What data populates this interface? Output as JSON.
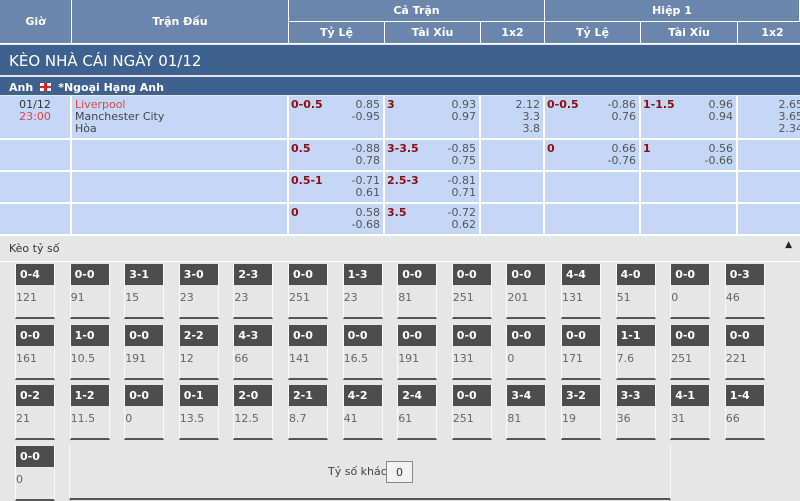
{
  "header": {
    "gio": "Giờ",
    "tran_dau": "Trận Đấu",
    "ca_tran": "Cả Trận",
    "hiep1": "Hiệp 1",
    "ty_le": "Tỷ Lệ",
    "tai_xiu": "Tài Xỉu",
    "x12": "1x2"
  },
  "title": "KÈO NHÀ CÁI NGÀY 01/12",
  "league": {
    "country": "Anh",
    "name": "*Ngoại Hạng Anh"
  },
  "match": {
    "date": "01/12",
    "time": "23:00",
    "home": "Liverpool",
    "away": "Manchester City",
    "draw": "Hòa"
  },
  "rows": [
    {
      "ft_hdp": "0-0.5",
      "ft_hdp_o": [
        "0.85",
        "-0.95"
      ],
      "ft_ou": "3",
      "ft_ou_o": [
        "0.93",
        "0.97"
      ],
      "ft_1x2": [
        "2.12",
        "3.3",
        "3.8"
      ],
      "h1_hdp": "0-0.5",
      "h1_hdp_o": [
        "-0.86",
        "0.76"
      ],
      "h1_ou": "1-1.5",
      "h1_ou_o": [
        "0.96",
        "0.94"
      ],
      "h1_1x2": [
        "2.65",
        "3.65",
        "2.34"
      ]
    },
    {
      "ft_hdp": "0.5",
      "ft_hdp_o": [
        "-0.88",
        "0.78"
      ],
      "ft_ou": "3-3.5",
      "ft_ou_o": [
        "-0.85",
        "0.75"
      ],
      "h1_hdp": "0",
      "h1_hdp_o": [
        "0.66",
        "-0.76"
      ],
      "h1_ou": "1",
      "h1_ou_o": [
        "0.56",
        "-0.66"
      ]
    },
    {
      "ft_hdp": "0.5-1",
      "ft_hdp_o": [
        "-0.71",
        "0.61"
      ],
      "ft_ou": "2.5-3",
      "ft_ou_o": [
        "-0.81",
        "0.71"
      ]
    },
    {
      "ft_hdp": "0",
      "ft_hdp_o": [
        "0.58",
        "-0.68"
      ],
      "ft_ou": "3.5",
      "ft_ou_o": [
        "-0.72",
        "0.62"
      ]
    }
  ],
  "correct_score": {
    "label": "Kèo tỷ số",
    "cards": [
      [
        [
          "0-4",
          "121"
        ],
        [
          "0-0",
          "91"
        ],
        [
          "3-1",
          "15"
        ],
        [
          "3-0",
          "23"
        ],
        [
          "2-3",
          "23"
        ],
        [
          "0-0",
          "251"
        ],
        [
          "1-3",
          "23"
        ],
        [
          "0-0",
          "81"
        ],
        [
          "0-0",
          "251"
        ],
        [
          "0-0",
          "201"
        ],
        [
          "4-4",
          "131"
        ],
        [
          "4-0",
          "51"
        ],
        [
          "0-0",
          "0"
        ],
        [
          "0-3",
          "46"
        ]
      ],
      [
        [
          "0-0",
          "161"
        ],
        [
          "1-0",
          "10.5"
        ],
        [
          "0-0",
          "191"
        ],
        [
          "2-2",
          "12"
        ],
        [
          "4-3",
          "66"
        ],
        [
          "0-0",
          "141"
        ],
        [
          "0-0",
          "16.5"
        ],
        [
          "0-0",
          "191"
        ],
        [
          "0-0",
          "131"
        ],
        [
          "0-0",
          "0"
        ],
        [
          "0-0",
          "171"
        ],
        [
          "1-1",
          "7.6"
        ],
        [
          "0-0",
          "251"
        ],
        [
          "0-0",
          "221"
        ]
      ],
      [
        [
          "0-2",
          "21"
        ],
        [
          "1-2",
          "11.5"
        ],
        [
          "0-0",
          "0"
        ],
        [
          "0-1",
          "13.5"
        ],
        [
          "2-0",
          "12.5"
        ],
        [
          "2-1",
          "8.7"
        ],
        [
          "4-2",
          "41"
        ],
        [
          "2-4",
          "61"
        ],
        [
          "0-0",
          "251"
        ],
        [
          "3-4",
          "81"
        ],
        [
          "3-2",
          "19"
        ],
        [
          "3-3",
          "36"
        ],
        [
          "4-1",
          "31"
        ],
        [
          "1-4",
          "66"
        ]
      ],
      [
        [
          "0-0",
          "0"
        ]
      ]
    ],
    "other_label": "Tỷ số khác",
    "other_value": "0"
  }
}
